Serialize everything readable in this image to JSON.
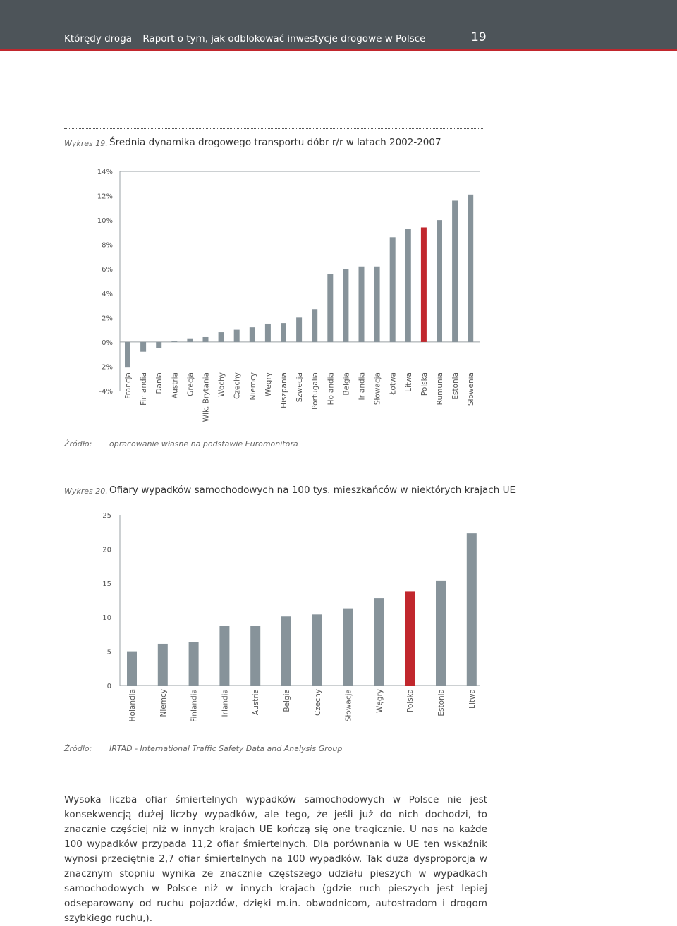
{
  "header": {
    "title": "Którędy droga – Raport o tym, jak odblokować inwestycje drogowe w Polsce",
    "page_number": "19"
  },
  "figure1": {
    "label": "Wykres 19.",
    "title": "Średnia dynamika drogowego transportu dóbr r/r w latach 2002-2007",
    "source_label": "Źródło:",
    "source_text": "opracowanie własne na podstawie Euromonitora"
  },
  "figure2": {
    "label": "Wykres 20.",
    "title": "Ofiary wypadków samochodowych na 100 tys. mieszkańców w niektórych krajach UE",
    "source_label": "Źródło:",
    "source_text": "IRTAD - International Traffic Safety Data and Analysis Group"
  },
  "chart_data": [
    {
      "type": "bar",
      "title": "Średnia dynamika drogowego transportu dóbr r/r w latach 2002-2007",
      "categories": [
        "Francja",
        "Finlandia",
        "Dania",
        "Austria",
        "Grecja",
        "Wlk. Brytania",
        "Wochy",
        "Czechy",
        "Niemcy",
        "Węgry",
        "Hiszpania",
        "Szwecja",
        "Portugalia",
        "Holandia",
        "Belgia",
        "Irlandia",
        "Słowacja",
        "Łotwa",
        "Litwa",
        "Polska",
        "Rumunia",
        "Estonia",
        "Słowenia"
      ],
      "values": [
        -2.1,
        -0.8,
        -0.5,
        0.05,
        0.3,
        0.4,
        0.8,
        1.0,
        1.2,
        1.5,
        1.55,
        2.0,
        2.7,
        5.6,
        6.0,
        6.2,
        6.2,
        8.6,
        9.3,
        9.4,
        10.0,
        11.6,
        12.1
      ],
      "highlight": "Polska",
      "y_ticks": [
        "14%",
        "12%",
        "10%",
        "8%",
        "6%",
        "4%",
        "2%",
        "0%",
        "-2%",
        "-4%"
      ],
      "ylim": [
        -4,
        14
      ],
      "bar_color": "#87939a",
      "highlight_color": "#c1272d",
      "grid": false
    },
    {
      "type": "bar",
      "title": "Ofiary wypadków samochodowych na 100 tys. mieszkańców w niektórych krajach UE",
      "categories": [
        "Holandia",
        "Niemcy",
        "Finlandia",
        "Irlandia",
        "Austria",
        "Belgia",
        "Czechy",
        "Słowacja",
        "Węgry",
        "Polska",
        "Estonia",
        "Litwa"
      ],
      "values": [
        5.0,
        6.1,
        6.4,
        8.7,
        8.7,
        10.1,
        10.4,
        11.3,
        12.8,
        13.8,
        15.3,
        22.3
      ],
      "highlight": "Polska",
      "y_ticks": [
        "25",
        "20",
        "15",
        "10",
        "5",
        "0"
      ],
      "ylim": [
        0,
        25
      ],
      "bar_color": "#87939a",
      "highlight_color": "#c1272d",
      "grid": false
    }
  ],
  "body": {
    "paragraph": "Wysoka liczba ofiar śmiertelnych wypadków samochodowych w Polsce nie jest konsekwencją dużej liczby wypadków, ale tego, że jeśli już do nich dochodzi, to znacznie częściej niż w innych krajach UE kończą się one tragicznie. U nas na każde 100 wypadków przypada 11,2 ofiar śmiertelnych. Dla porównania w UE ten wskaźnik wynosi przeciętnie 2,7 ofiar śmiertelnych na 100 wypadków. Tak duża dysproporcja w znacznym stopniu wynika ze znacznie częstszego udziału pieszych w wypadkach samochodowych w Polsce niż w innych krajach (gdzie ruch pieszych jest lepiej odseparowany od ruchu pojazdów, dzięki m.in. obwodnicom, autostradom i drogom szybkiego ruchu,)."
  }
}
